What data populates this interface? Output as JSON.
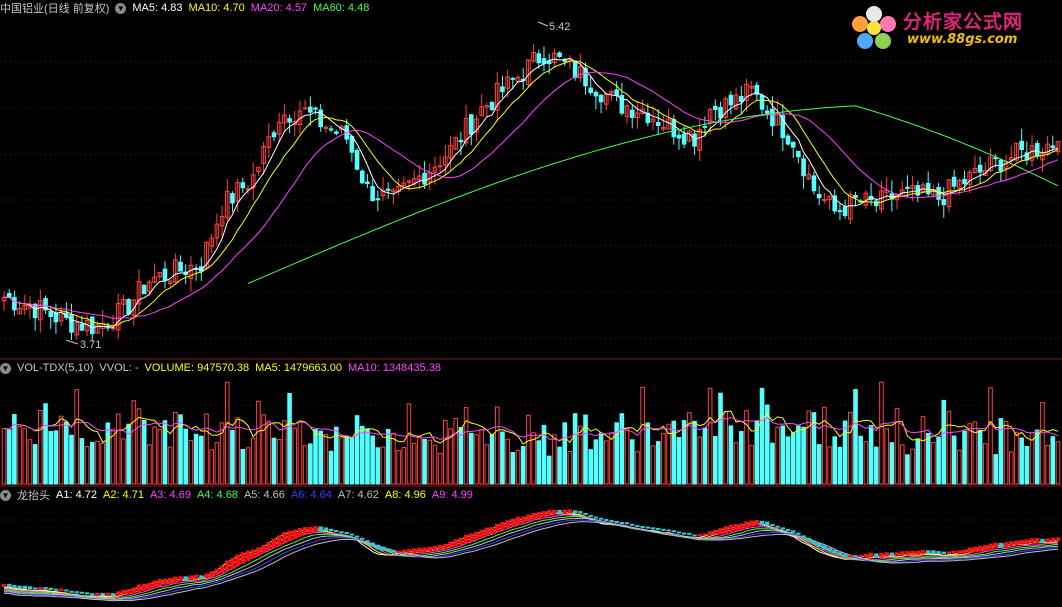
{
  "main_panel": {
    "title": "中国铝业(日线 前复权)",
    "ma5_label": "MA5: 4.83",
    "ma10_label": "MA10: 4.70",
    "ma20_label": "MA20: 4.57",
    "ma60_label": "MA60: 4.48",
    "high_label": "5.42",
    "low_label": "3.71",
    "colors": {
      "ma5": "#ffffff",
      "ma10": "#ffff00",
      "ma20": "#ff44ff",
      "ma60": "#44ff44",
      "up": "#ff4040",
      "down": "#54ffff"
    }
  },
  "volume_panel": {
    "title": "VOL-TDX(5,10)",
    "vvol_label": "VVOL: -",
    "volume_label": "VOLUME: 947570.38",
    "ma5_label": "MA5: 1479663.00",
    "ma10_label": "MA10: 1348435.38"
  },
  "indicator_panel": {
    "title": "龙抬头",
    "labels": [
      "A1: 4.72",
      "A2: 4.71",
      "A3: 4.69",
      "A4: 4.68",
      "A5: 4.66",
      "A6: 4.64",
      "A7: 4.62",
      "A8: 4.96",
      "A9: 4.99"
    ],
    "label_colors": [
      "#ffffff",
      "#ffff00",
      "#ff44ff",
      "#44ff44",
      "#c0c0c0",
      "#4040ff",
      "#c0c0c0",
      "#ffff00",
      "#ff44ff"
    ]
  },
  "logo": {
    "title": "分析家公式网",
    "url": "www.88gs.com"
  },
  "chart_data": {
    "type": "candlestick",
    "series_anchor_close": [
      [
        0,
        3.92
      ],
      [
        6,
        3.86
      ],
      [
        12,
        3.78
      ],
      [
        18,
        3.75
      ],
      [
        23,
        3.84
      ],
      [
        28,
        4.02
      ],
      [
        33,
        4.07
      ],
      [
        38,
        4.12
      ],
      [
        42,
        4.45
      ],
      [
        48,
        4.62
      ],
      [
        53,
        4.98
      ],
      [
        57,
        5.02
      ],
      [
        62,
        4.92
      ],
      [
        66,
        4.85
      ],
      [
        70,
        4.55
      ],
      [
        75,
        4.48
      ],
      [
        80,
        4.62
      ],
      [
        86,
        4.78
      ],
      [
        92,
        5.02
      ],
      [
        98,
        5.18
      ],
      [
        104,
        5.35
      ],
      [
        108,
        5.28
      ],
      [
        113,
        5.18
      ],
      [
        118,
        5.05
      ],
      [
        123,
        5.02
      ],
      [
        128,
        4.92
      ],
      [
        133,
        4.86
      ],
      [
        136,
        5.02
      ],
      [
        140,
        5.05
      ],
      [
        144,
        5.12
      ],
      [
        148,
        4.98
      ],
      [
        152,
        4.84
      ],
      [
        156,
        4.55
      ],
      [
        160,
        4.42
      ],
      [
        164,
        4.48
      ],
      [
        168,
        4.46
      ],
      [
        172,
        4.52
      ],
      [
        176,
        4.51
      ],
      [
        180,
        4.5
      ],
      [
        184,
        4.58
      ],
      [
        188,
        4.65
      ],
      [
        192,
        4.72
      ],
      [
        196,
        4.76
      ],
      [
        200,
        4.8
      ],
      [
        203,
        4.83
      ]
    ],
    "ma60_range": [
      4.0,
      4.97
    ],
    "high": 5.42,
    "low": 3.71,
    "ylim": [
      3.6,
      5.55
    ],
    "volume_ylim": [
      0,
      2300000
    ]
  }
}
